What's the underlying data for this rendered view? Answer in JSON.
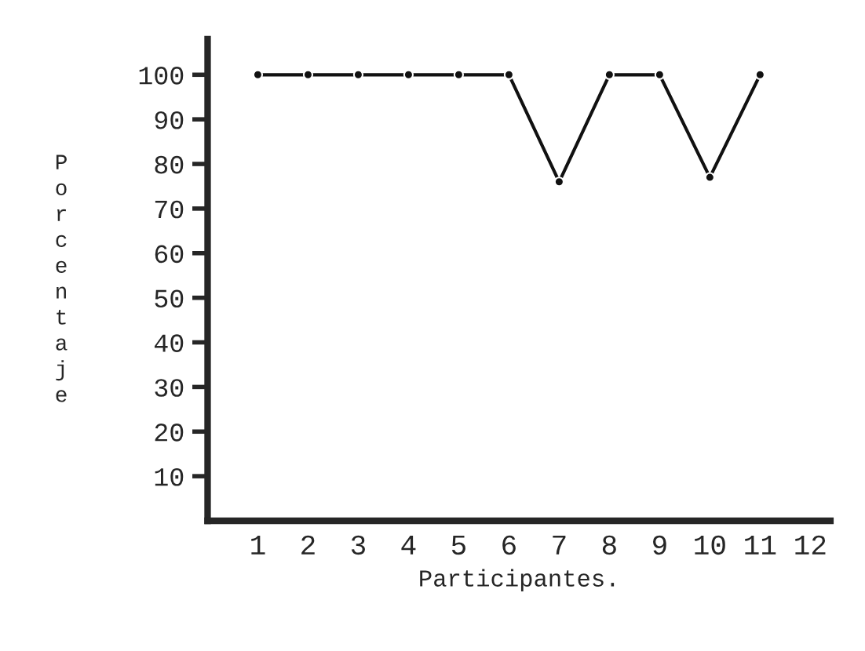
{
  "chart_data": {
    "type": "line",
    "xlabel": "Participantes.",
    "ylabel": "Porcentaje",
    "x": [
      1,
      2,
      3,
      4,
      5,
      6,
      7,
      8,
      9,
      10,
      11
    ],
    "series": [
      {
        "color": "#111111",
        "values": [
          100,
          100,
          100,
          100,
          100,
          100,
          76,
          100,
          100,
          77,
          100
        ]
      }
    ],
    "xlim": [
      0,
      12.4
    ],
    "xticks": [
      1,
      2,
      3,
      4,
      5,
      6,
      7,
      8,
      9,
      10,
      11,
      12
    ],
    "ylim": [
      0,
      108
    ],
    "yticks": [
      10,
      20,
      30,
      40,
      50,
      60,
      70,
      80,
      90,
      100
    ],
    "marker": "circle",
    "line_style": "solid",
    "grid": false,
    "legend": false
  }
}
